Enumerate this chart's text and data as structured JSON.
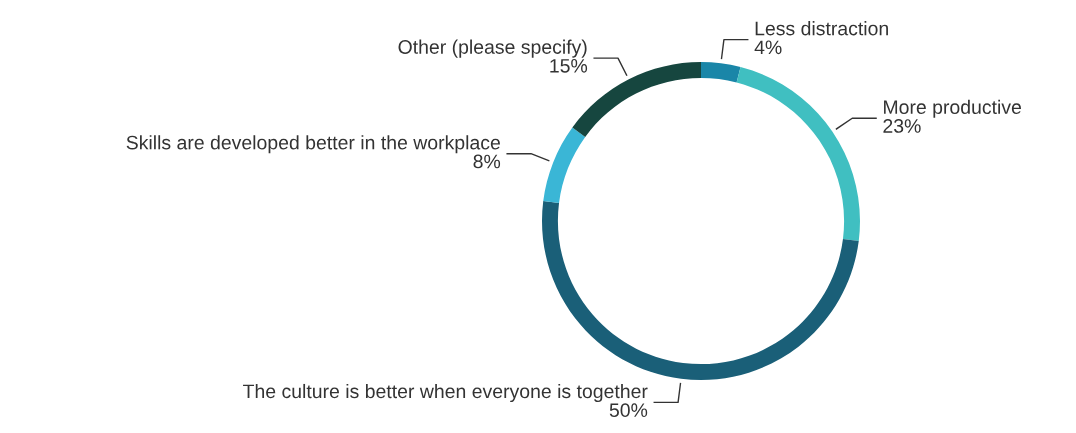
{
  "chart_data": {
    "type": "donut",
    "categories": [
      "Less distraction",
      "More productive",
      "The culture is better when everyone is together",
      "Skills are developed better in the workplace",
      "Other (please specify)"
    ],
    "values": [
      4,
      23,
      50,
      8,
      15
    ],
    "colors": [
      "#1a86a8",
      "#40bfc1",
      "#1a5f78",
      "#3ab6d6",
      "#16463f"
    ],
    "value_labels": [
      "4%",
      "23%",
      "50%",
      "8%",
      "15%"
    ],
    "legend": false
  }
}
